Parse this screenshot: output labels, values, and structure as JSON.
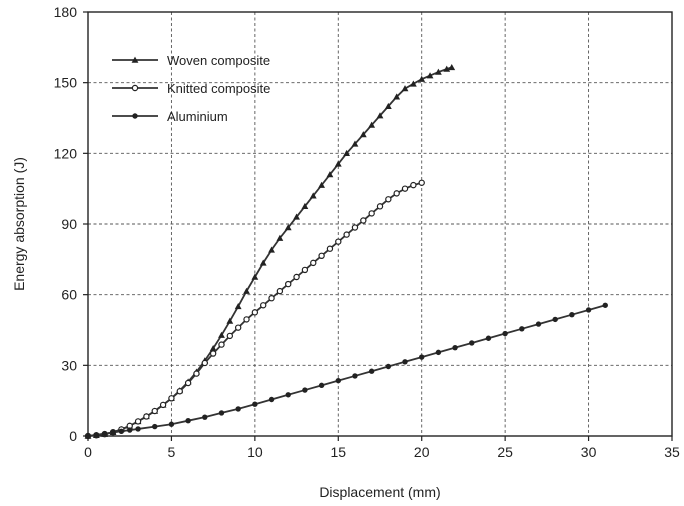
{
  "chart_data": {
    "type": "line",
    "title": "",
    "xlabel": "Displacement (mm)",
    "ylabel": "Energy absorption (J)",
    "xlim": [
      0,
      35
    ],
    "ylim": [
      0,
      180
    ],
    "xticks": [
      0,
      5,
      10,
      15,
      20,
      25,
      30,
      35
    ],
    "yticks": [
      0,
      30,
      60,
      90,
      120,
      150,
      180
    ],
    "grid": true,
    "legend_position": "top-left",
    "series": [
      {
        "name": "Woven composite",
        "marker": "triangle",
        "color": "#333333",
        "x": [
          0,
          0.5,
          1,
          1.5,
          2,
          2.5,
          3,
          3.5,
          4,
          4.5,
          5,
          5.5,
          6,
          6.5,
          7,
          7.5,
          8,
          8.5,
          9,
          9.5,
          10,
          10.5,
          11,
          11.5,
          12,
          12.5,
          13,
          13.5,
          14,
          14.5,
          15,
          15.5,
          16,
          16.5,
          17,
          17.5,
          18,
          18.5,
          19,
          19.5,
          20,
          20.5,
          21,
          21.5,
          21.8
        ],
        "y": [
          0,
          0.3,
          0.8,
          1.6,
          2.8,
          4.3,
          6.2,
          8.3,
          10.6,
          13.2,
          16,
          19.3,
          23,
          27.2,
          32,
          37.2,
          42.8,
          48.8,
          55,
          61.5,
          67.5,
          73.5,
          79,
          84,
          88.5,
          93,
          97.5,
          102,
          106.5,
          111,
          115.5,
          120,
          124,
          128,
          132,
          136,
          140,
          144,
          147.5,
          149.5,
          151.5,
          153,
          154.5,
          155.8,
          156.5
        ]
      },
      {
        "name": "Knitted composite",
        "marker": "circle-open",
        "color": "#333333",
        "x": [
          0,
          0.5,
          1,
          1.5,
          2,
          2.5,
          3,
          3.5,
          4,
          4.5,
          5,
          5.5,
          6,
          6.5,
          7,
          7.5,
          8,
          8.5,
          9,
          9.5,
          10,
          10.5,
          11,
          11.5,
          12,
          12.5,
          13,
          13.5,
          14,
          14.5,
          15,
          15.5,
          16,
          16.5,
          17,
          17.5,
          18,
          18.5,
          19,
          19.5,
          20
        ],
        "y": [
          0,
          0.3,
          0.8,
          1.6,
          2.8,
          4.3,
          6.2,
          8.3,
          10.6,
          13.2,
          16,
          19,
          22.5,
          26.5,
          31,
          35,
          38.8,
          42.5,
          46,
          49.5,
          52.5,
          55.5,
          58.5,
          61.5,
          64.5,
          67.5,
          70.5,
          73.5,
          76.5,
          79.5,
          82.5,
          85.5,
          88.5,
          91.5,
          94.5,
          97.5,
          100.5,
          103,
          105,
          106.5,
          107.5
        ]
      },
      {
        "name": "Aluminium",
        "marker": "circle-filled",
        "color": "#333333",
        "x": [
          0,
          0.5,
          1,
          1.5,
          2,
          2.5,
          3,
          4,
          5,
          6,
          7,
          8,
          9,
          10,
          11,
          12,
          13,
          14,
          15,
          16,
          17,
          18,
          19,
          20,
          21,
          22,
          23,
          24,
          25,
          26,
          27,
          28,
          29,
          30,
          31
        ],
        "y": [
          0,
          0.5,
          1,
          1.5,
          2,
          2.5,
          3,
          4,
          5,
          6.5,
          8,
          9.8,
          11.5,
          13.5,
          15.5,
          17.5,
          19.5,
          21.5,
          23.5,
          25.5,
          27.5,
          29.5,
          31.5,
          33.5,
          35.5,
          37.5,
          39.5,
          41.5,
          43.5,
          45.5,
          47.5,
          49.5,
          51.5,
          53.5,
          55.5
        ]
      }
    ]
  }
}
